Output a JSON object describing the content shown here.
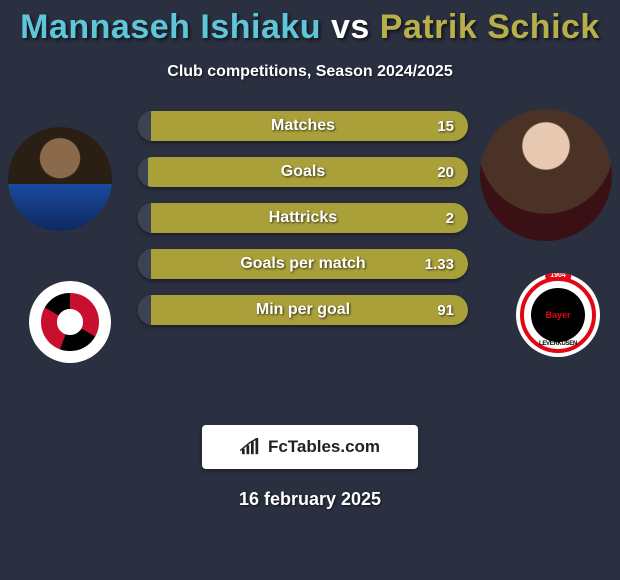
{
  "title_html": "<span style='color:#5ec6d8'>Mannaseh Ishiaku</span> <span style='color:#ffffff'>vs</span> <span style='color:#b7b04a'>Patrik Schick</span>",
  "subtitle": "Club competitions, Season 2024/2025",
  "date": "16 february 2025",
  "logo_text": "FcTables.com",
  "colors": {
    "bar_fill": "#aaa03a",
    "bar_empty": "#3a4254",
    "background": "#2a3040",
    "p1_accent": "#5ec6d8",
    "p2_accent": "#b7b04a"
  },
  "player_left": {
    "name": "Mannaseh Ishiaku",
    "club_badge": "hurricane-swirl"
  },
  "player_right": {
    "name": "Patrik Schick",
    "club_badge": "bayer-leverkusen",
    "club_year": "1904",
    "club_text": "LEVERKUSEN"
  },
  "stats": [
    {
      "label": "Matches",
      "value": "15",
      "left_pct": 4
    },
    {
      "label": "Goals",
      "value": "20",
      "left_pct": 3
    },
    {
      "label": "Hattricks",
      "value": "2",
      "left_pct": 4
    },
    {
      "label": "Goals per match",
      "value": "1.33",
      "left_pct": 4
    },
    {
      "label": "Min per goal",
      "value": "91",
      "left_pct": 4
    }
  ]
}
